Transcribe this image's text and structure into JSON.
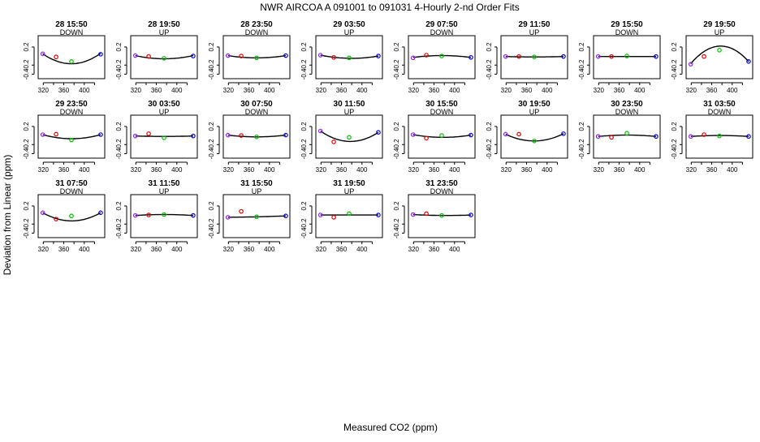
{
  "page": {
    "title": "NWR   AIRCOA A   091001 to 091031   4-Hourly 2-nd Order Fits",
    "ylabel": "Deviation from Linear (ppm)",
    "xlabel": "Measured CO2 (ppm)"
  },
  "colors": {
    "standard1": "#8a2be2",
    "standard2": "#e00000",
    "standard3": "#00c000",
    "standard4": "#0000e0",
    "curve": "#000000",
    "axes": "#000000"
  },
  "chart_data": {
    "type": "scatter",
    "xlim": [
      310,
      440
    ],
    "ylim": [
      -0.5,
      0.45
    ],
    "x_ticks": [
      320,
      360,
      400
    ],
    "y_ticks": [
      -0.4,
      -0.2,
      0.2
    ],
    "standards_x": [
      319,
      345,
      375,
      432
    ],
    "panels": [
      {
        "label": "28 15:50",
        "dir": "DOWN",
        "fit": [
          0.05,
          -0.17,
          0.06
        ],
        "points": [
          0.05,
          -0.02,
          -0.12,
          0.04
        ]
      },
      {
        "label": "28 19:50",
        "dir": "UP",
        "fit": [
          0.01,
          -0.06,
          0.01
        ],
        "points": [
          0.01,
          -0.01,
          -0.05,
          0.0
        ]
      },
      {
        "label": "28 23:50",
        "dir": "DOWN",
        "fit": [
          0.01,
          -0.04,
          0.01
        ],
        "points": [
          0.01,
          0.0,
          -0.04,
          0.01
        ]
      },
      {
        "label": "29 03:50",
        "dir": "UP",
        "fit": [
          0.02,
          -0.05,
          0.0
        ],
        "points": [
          0.02,
          -0.03,
          -0.04,
          0.0
        ]
      },
      {
        "label": "29 07:50",
        "dir": "DOWN",
        "fit": [
          -0.03,
          0.01,
          -0.03
        ],
        "points": [
          -0.04,
          0.02,
          0.0,
          -0.03
        ]
      },
      {
        "label": "29 11:50",
        "dir": "UP",
        "fit": [
          -0.01,
          -0.02,
          -0.01
        ],
        "points": [
          -0.01,
          -0.01,
          -0.02,
          -0.01
        ]
      },
      {
        "label": "29 15:50",
        "dir": "DOWN",
        "fit": [
          -0.01,
          -0.01,
          -0.01
        ],
        "points": [
          -0.01,
          -0.01,
          0.0,
          -0.01
        ]
      },
      {
        "label": "29 19:50",
        "dir": "UP",
        "fit": [
          -0.17,
          0.22,
          -0.12
        ],
        "points": [
          -0.18,
          -0.01,
          0.13,
          -0.12
        ]
      },
      {
        "label": "29 23:50",
        "dir": "DOWN",
        "fit": [
          0.02,
          -0.07,
          0.02
        ],
        "points": [
          0.02,
          0.03,
          -0.1,
          0.02
        ]
      },
      {
        "label": "30 03:50",
        "dir": "UP",
        "fit": [
          -0.01,
          -0.02,
          -0.01
        ],
        "points": [
          -0.01,
          0.04,
          -0.05,
          -0.01
        ]
      },
      {
        "label": "30 07:50",
        "dir": "DOWN",
        "fit": [
          0.01,
          -0.03,
          0.01
        ],
        "points": [
          0.01,
          0.0,
          -0.03,
          0.01
        ]
      },
      {
        "label": "30 11:50",
        "dir": "UP",
        "fit": [
          0.1,
          -0.13,
          0.07
        ],
        "points": [
          0.1,
          -0.14,
          -0.04,
          0.07
        ]
      },
      {
        "label": "30 15:50",
        "dir": "DOWN",
        "fit": [
          0.02,
          -0.04,
          0.01
        ],
        "points": [
          0.02,
          -0.06,
          0.0,
          0.01
        ]
      },
      {
        "label": "30 19:50",
        "dir": "UP",
        "fit": [
          0.03,
          -0.12,
          0.04
        ],
        "points": [
          0.03,
          0.03,
          -0.12,
          0.04
        ]
      },
      {
        "label": "30 23:50",
        "dir": "DOWN",
        "fit": [
          -0.02,
          0.01,
          -0.02
        ],
        "points": [
          -0.02,
          -0.04,
          0.05,
          -0.02
        ]
      },
      {
        "label": "31 03:50",
        "dir": "DOWN",
        "fit": [
          -0.02,
          0.0,
          -0.02
        ],
        "points": [
          -0.02,
          0.02,
          -0.01,
          -0.02
        ]
      },
      {
        "label": "31 07:50",
        "dir": "DOWN",
        "fit": [
          0.05,
          -0.13,
          0.05
        ],
        "points": [
          0.05,
          -0.09,
          -0.02,
          0.05
        ]
      },
      {
        "label": "31 11:50",
        "dir": "UP",
        "fit": [
          -0.01,
          0.01,
          -0.01
        ],
        "points": [
          -0.01,
          0.0,
          0.01,
          -0.01
        ]
      },
      {
        "label": "31 15:50",
        "dir": "UP",
        "fit": [
          -0.05,
          -0.04,
          -0.02
        ],
        "points": [
          -0.05,
          0.08,
          -0.04,
          -0.02
        ]
      },
      {
        "label": "31 19:50",
        "dir": "UP",
        "fit": [
          0.0,
          0.0,
          0.0
        ],
        "points": [
          0.0,
          -0.05,
          0.03,
          0.0
        ]
      },
      {
        "label": "31 23:50",
        "dir": "DOWN",
        "fit": [
          0.01,
          -0.01,
          0.0
        ],
        "points": [
          0.01,
          0.03,
          -0.01,
          0.0
        ]
      }
    ]
  }
}
